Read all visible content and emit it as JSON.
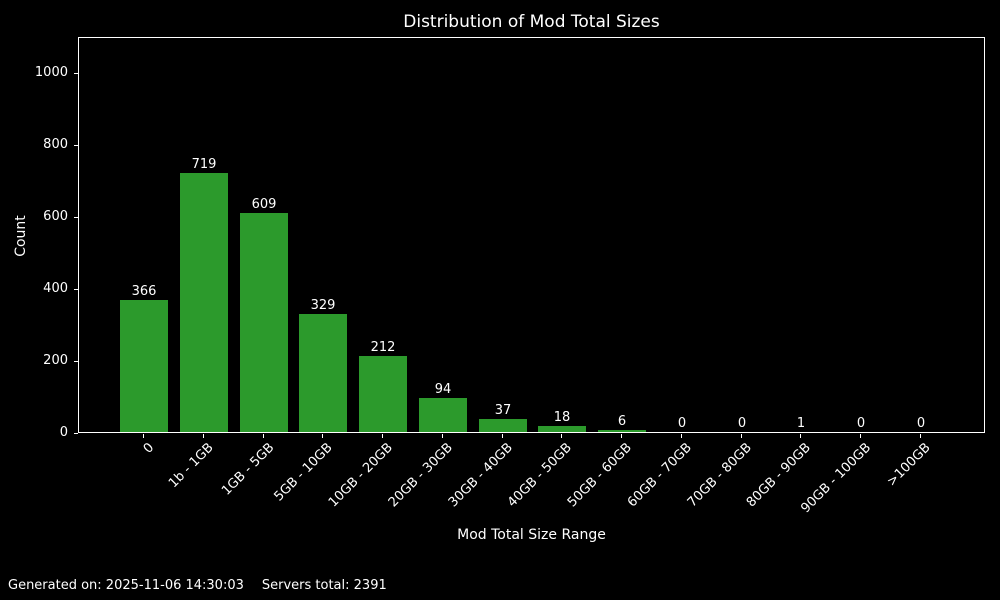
{
  "chart_data": {
    "type": "bar",
    "title": "Distribution of Mod Total Sizes",
    "xlabel": "Mod Total Size Range",
    "ylabel": "Count",
    "categories": [
      "0",
      "1b - 1GB",
      "1GB - 5GB",
      "5GB - 10GB",
      "10GB - 20GB",
      "20GB - 30GB",
      "30GB - 40GB",
      "40GB - 50GB",
      "50GB - 60GB",
      "60GB - 70GB",
      "70GB - 80GB",
      "80GB - 90GB",
      "90GB - 100GB",
      ">100GB"
    ],
    "values": [
      366,
      719,
      609,
      329,
      212,
      94,
      37,
      18,
      6,
      0,
      0,
      1,
      0,
      0
    ],
    "ylim": [
      0,
      1100
    ],
    "yticks": [
      0,
      200,
      400,
      600,
      800,
      1000
    ],
    "bar_labels_shown": true,
    "xtick_rotation_deg": 45,
    "grid": false,
    "legend": "none",
    "colors": {
      "background": "#000000",
      "bar": "#2c9a2c",
      "text": "#ffffff",
      "spine": "#ffffff"
    }
  },
  "footer": {
    "generated": "Generated on: 2025-11-06 14:30:03",
    "servers": "Servers total: 2391"
  }
}
